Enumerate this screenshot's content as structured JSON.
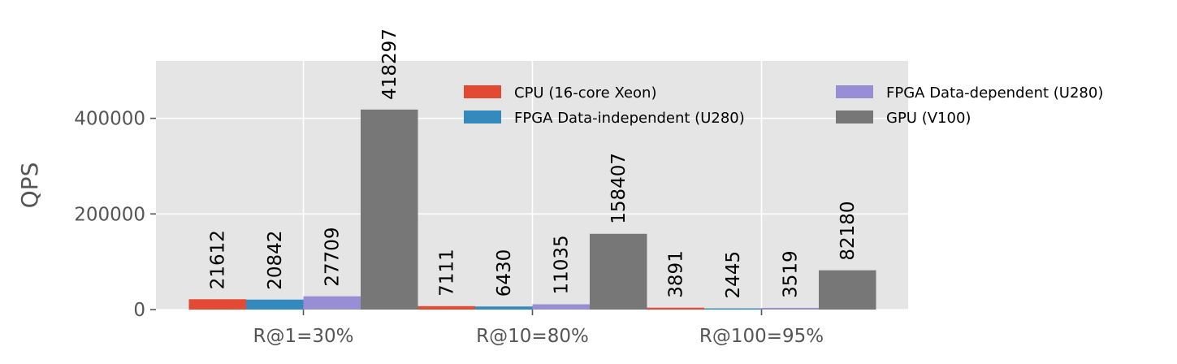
{
  "chart_data": {
    "type": "bar",
    "categories": [
      "R@1=30%",
      "R@10=80%",
      "R@100=95%"
    ],
    "series": [
      {
        "name": "CPU (16-core Xeon)",
        "color": "#E24A33",
        "values": [
          21612,
          7111,
          3891
        ]
      },
      {
        "name": "FPGA Data-independent (U280)",
        "color": "#348ABD",
        "values": [
          20842,
          6430,
          2445
        ]
      },
      {
        "name": "FPGA Data-dependent (U280)",
        "color": "#988ED5",
        "values": [
          27709,
          11035,
          3519
        ]
      },
      {
        "name": "GPU (V100)",
        "color": "#777777",
        "values": [
          418297,
          158407,
          82180
        ]
      }
    ],
    "ylabel": "QPS",
    "xlabel": "",
    "ylim": [
      0,
      520000
    ],
    "yticks": [
      0,
      200000,
      400000
    ],
    "grid": true,
    "legend_position": "top-right",
    "data_labels_rotated": true
  }
}
